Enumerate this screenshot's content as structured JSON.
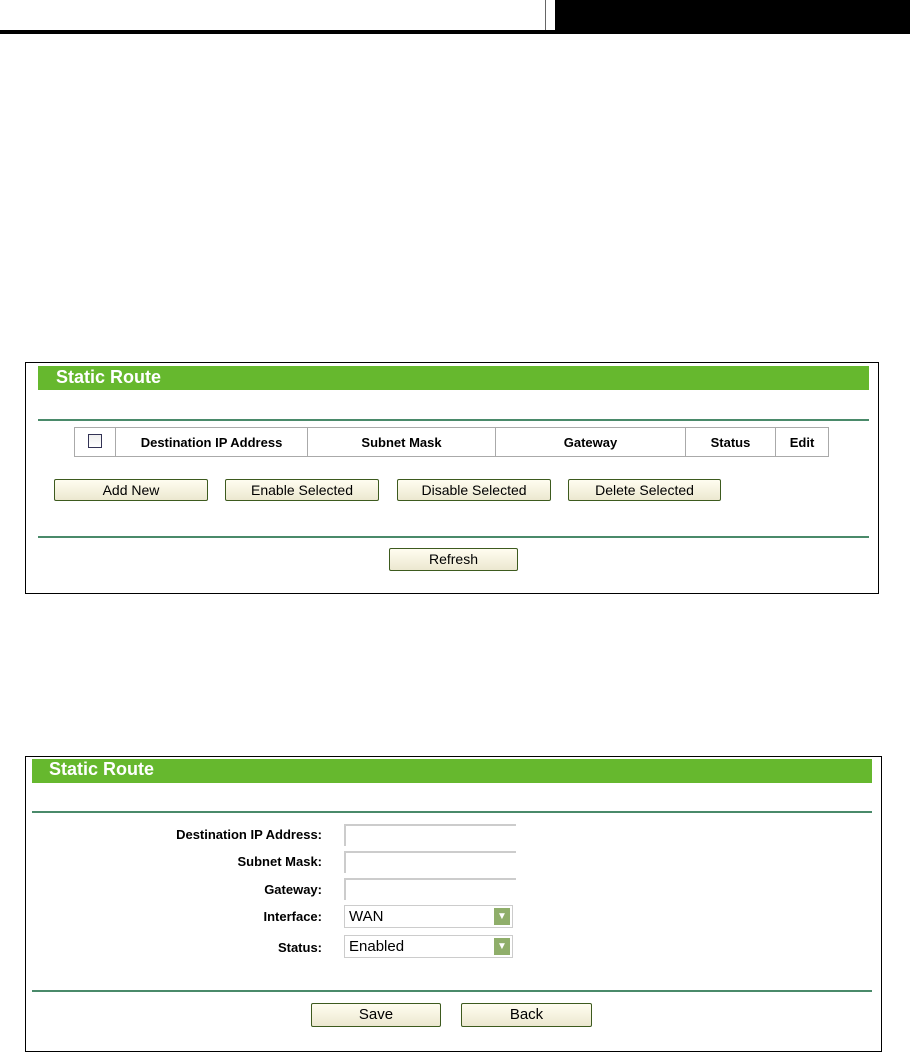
{
  "list_panel": {
    "title": "Static Route",
    "columns": [
      "Destination IP Address",
      "Subnet Mask",
      "Gateway",
      "Status",
      "Edit"
    ],
    "buttons": {
      "add_new": "Add New",
      "enable_selected": "Enable Selected",
      "disable_selected": "Disable Selected",
      "delete_selected": "Delete Selected",
      "refresh": "Refresh"
    }
  },
  "form_panel": {
    "title": "Static Route",
    "fields": {
      "destination_label": "Destination IP Address:",
      "destination_value": "",
      "subnet_label": "Subnet Mask:",
      "subnet_value": "",
      "gateway_label": "Gateway:",
      "gateway_value": "",
      "interface_label": "Interface:",
      "interface_value": "WAN",
      "status_label": "Status:",
      "status_value": "Enabled"
    },
    "buttons": {
      "save": "Save",
      "back": "Back"
    }
  },
  "colors": {
    "header_green": "#66b82e",
    "divider": "#4a8a6a"
  }
}
